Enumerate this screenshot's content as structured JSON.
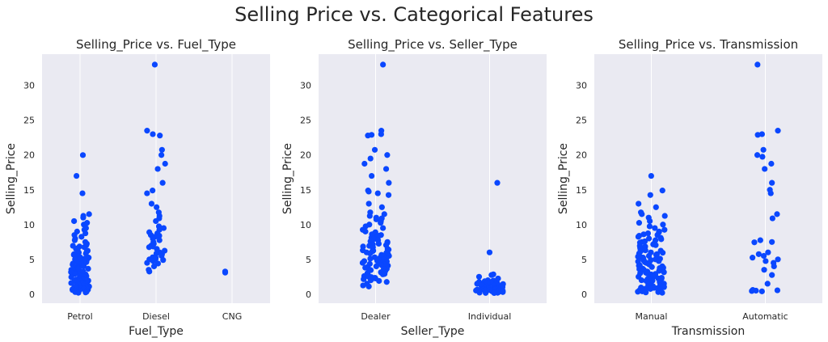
{
  "figure_title": "Selling Price vs. Categorical Features",
  "colors": {
    "point": "#0a47ff",
    "background": "#eaeaf2",
    "grid": "#ffffff"
  },
  "chart_data": [
    {
      "type": "scatter",
      "style": "strip",
      "title": "Selling_Price vs. Fuel_Type",
      "xlabel": "Fuel_Type",
      "ylabel": "Selling_Price",
      "categories": [
        "Petrol",
        "Diesel",
        "CNG"
      ],
      "yticks": [
        0,
        5,
        10,
        15,
        20,
        25,
        30
      ],
      "ylim": [
        -1.3,
        34.5
      ],
      "grid": "vertical",
      "series": [
        {
          "category": "Petrol",
          "values": [
            19.99,
            17.0,
            14.5,
            11.5,
            11.25,
            11.0,
            10.5,
            10.25,
            10.0,
            9.5,
            9.25,
            9.0,
            8.75,
            8.5,
            8.25,
            8.0,
            7.75,
            7.5,
            7.25,
            7.05,
            6.95,
            6.85,
            6.75,
            6.6,
            6.5,
            6.4,
            6.25,
            6.15,
            6.0,
            5.95,
            5.85,
            5.75,
            5.65,
            5.5,
            5.4,
            5.3,
            5.25,
            5.2,
            5.1,
            5.0,
            4.95,
            4.9,
            4.8,
            4.75,
            4.7,
            4.6,
            4.5,
            4.4,
            4.35,
            4.25,
            4.15,
            4.1,
            4.0,
            3.95,
            3.9,
            3.8,
            3.75,
            3.65,
            3.6,
            3.5,
            3.45,
            3.35,
            3.25,
            3.15,
            3.1,
            3.0,
            2.95,
            2.9,
            2.85,
            2.75,
            2.65,
            2.6,
            2.55,
            2.5,
            2.45,
            2.35,
            2.25,
            2.2,
            2.15,
            2.1,
            2.0,
            1.95,
            1.9,
            1.85,
            1.75,
            1.65,
            1.6,
            1.55,
            1.5,
            1.45,
            1.35,
            1.25,
            1.2,
            1.15,
            1.1,
            1.05,
            1.0,
            0.95,
            0.9,
            0.85,
            0.8,
            0.75,
            0.7,
            0.65,
            0.6,
            0.55,
            0.5,
            0.45,
            0.4,
            0.35,
            0.3,
            0.25,
            0.2
          ]
        },
        {
          "category": "Diesel",
          "values": [
            33.0,
            23.5,
            23.0,
            22.8,
            20.75,
            20.0,
            18.75,
            18.0,
            16.0,
            14.9,
            14.5,
            13.0,
            12.5,
            11.75,
            11.25,
            10.9,
            10.5,
            9.75,
            9.5,
            9.25,
            8.9,
            8.75,
            8.5,
            8.4,
            8.25,
            8.0,
            7.75,
            7.5,
            7.25,
            7.0,
            6.85,
            6.75,
            6.5,
            6.25,
            6.0,
            5.85,
            5.75,
            5.5,
            5.3,
            5.25,
            5.1,
            5.0,
            4.9,
            4.75,
            4.5,
            4.4,
            4.0,
            3.5,
            3.25
          ]
        },
        {
          "category": "CNG",
          "values": [
            3.25,
            3.1
          ]
        }
      ]
    },
    {
      "type": "scatter",
      "style": "strip",
      "title": "Selling_Price vs. Seller_Type",
      "xlabel": "Seller_Type",
      "ylabel": "Selling_Price",
      "categories": [
        "Dealer",
        "Individual"
      ],
      "yticks": [
        0,
        5,
        10,
        15,
        20,
        25,
        30
      ],
      "ylim": [
        -1.3,
        34.5
      ],
      "grid": "vertical",
      "series": [
        {
          "category": "Dealer",
          "values": [
            33.0,
            23.5,
            23.0,
            22.9,
            22.8,
            20.75,
            20.0,
            19.5,
            18.75,
            18.0,
            17.0,
            16.0,
            14.9,
            14.75,
            14.5,
            14.25,
            13.0,
            12.5,
            11.75,
            11.5,
            11.25,
            11.0,
            10.9,
            10.75,
            10.5,
            10.25,
            10.0,
            9.75,
            9.5,
            9.25,
            9.0,
            8.9,
            8.75,
            8.6,
            8.5,
            8.4,
            8.25,
            8.1,
            8.0,
            7.9,
            7.75,
            7.6,
            7.5,
            7.4,
            7.25,
            7.15,
            7.05,
            6.95,
            6.85,
            6.75,
            6.65,
            6.5,
            6.4,
            6.3,
            6.25,
            6.15,
            6.0,
            5.95,
            5.85,
            5.75,
            5.65,
            5.5,
            5.4,
            5.3,
            5.25,
            5.2,
            5.1,
            5.0,
            4.95,
            4.9,
            4.8,
            4.75,
            4.7,
            4.6,
            4.5,
            4.4,
            4.35,
            4.25,
            4.15,
            4.1,
            4.0,
            3.95,
            3.9,
            3.8,
            3.75,
            3.65,
            3.6,
            3.5,
            3.45,
            3.35,
            3.25,
            3.15,
            3.1,
            3.0,
            2.95,
            2.9,
            2.85,
            2.75,
            2.65,
            2.6,
            2.5,
            2.45,
            2.35,
            2.25,
            2.15,
            2.0,
            1.9,
            1.75,
            1.5,
            1.25,
            1.1
          ]
        },
        {
          "category": "Individual",
          "values": [
            16.0,
            6.0,
            2.85,
            2.75,
            2.5,
            2.25,
            2.0,
            1.95,
            1.9,
            1.85,
            1.75,
            1.7,
            1.65,
            1.6,
            1.55,
            1.5,
            1.45,
            1.4,
            1.35,
            1.3,
            1.25,
            1.2,
            1.15,
            1.1,
            1.05,
            1.0,
            0.95,
            0.9,
            0.85,
            0.8,
            0.78,
            0.75,
            0.72,
            0.7,
            0.68,
            0.65,
            0.62,
            0.6,
            0.58,
            0.55,
            0.52,
            0.5,
            0.48,
            0.45,
            0.42,
            0.4,
            0.38,
            0.35,
            0.32,
            0.3,
            0.28,
            0.25,
            0.22,
            0.2,
            0.18,
            0.16
          ]
        }
      ]
    },
    {
      "type": "scatter",
      "style": "strip",
      "title": "Selling_Price vs. Transmission",
      "xlabel": "Transmission",
      "ylabel": "Selling_Price",
      "categories": [
        "Manual",
        "Automatic"
      ],
      "yticks": [
        0,
        5,
        10,
        15,
        20,
        25,
        30
      ],
      "ylim": [
        -1.3,
        34.5
      ],
      "grid": "vertical",
      "series": [
        {
          "category": "Manual",
          "values": [
            17.0,
            14.9,
            14.25,
            13.0,
            12.5,
            11.75,
            11.5,
            11.25,
            11.0,
            10.5,
            10.25,
            10.0,
            9.75,
            9.5,
            9.25,
            9.0,
            8.9,
            8.75,
            8.6,
            8.5,
            8.4,
            8.25,
            8.1,
            8.0,
            7.9,
            7.75,
            7.6,
            7.5,
            7.4,
            7.25,
            7.15,
            7.05,
            6.95,
            6.85,
            6.75,
            6.65,
            6.5,
            6.4,
            6.3,
            6.25,
            6.15,
            6.0,
            5.95,
            5.85,
            5.75,
            5.65,
            5.5,
            5.4,
            5.3,
            5.25,
            5.2,
            5.1,
            5.0,
            4.95,
            4.9,
            4.8,
            4.75,
            4.7,
            4.6,
            4.5,
            4.4,
            4.35,
            4.25,
            4.15,
            4.1,
            4.0,
            3.95,
            3.9,
            3.8,
            3.75,
            3.65,
            3.6,
            3.5,
            3.45,
            3.35,
            3.25,
            3.15,
            3.1,
            3.0,
            2.95,
            2.9,
            2.85,
            2.75,
            2.65,
            2.6,
            2.55,
            2.5,
            2.45,
            2.35,
            2.25,
            2.2,
            2.15,
            2.1,
            2.0,
            1.95,
            1.9,
            1.85,
            1.75,
            1.65,
            1.6,
            1.55,
            1.5,
            1.45,
            1.35,
            1.25,
            1.2,
            1.15,
            1.1,
            1.05,
            1.0,
            0.95,
            0.9,
            0.85,
            0.8,
            0.75,
            0.7,
            0.65,
            0.6,
            0.55,
            0.5,
            0.45,
            0.4,
            0.35,
            0.3,
            0.25,
            0.2
          ]
        },
        {
          "category": "Automatic",
          "values": [
            33.0,
            23.5,
            23.0,
            22.9,
            20.75,
            20.0,
            19.75,
            18.75,
            18.0,
            16.0,
            15.0,
            14.5,
            11.5,
            10.9,
            7.75,
            7.5,
            7.45,
            6.0,
            5.75,
            5.5,
            5.25,
            5.0,
            4.75,
            4.5,
            4.0,
            3.5,
            2.75,
            1.5,
            0.6,
            0.55,
            0.5,
            0.45,
            0.4
          ]
        }
      ]
    }
  ]
}
